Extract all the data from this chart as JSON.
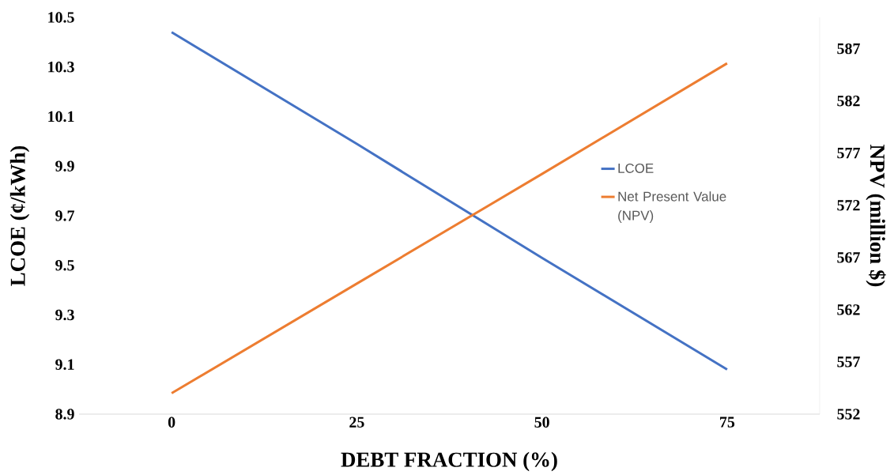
{
  "chart_data": {
    "type": "line",
    "xlabel": "DEBT FRACTION (%)",
    "ylabel": "LCOE (¢/kWh)",
    "y2label": "NPV (million $)",
    "categories": [
      "0",
      "25",
      "50",
      "75"
    ],
    "series": [
      {
        "name": "LCOE",
        "color": "#4472c4",
        "values": [
          10.44,
          9.99,
          9.53,
          9.08
        ]
      },
      {
        "name": "Net Present Value (NPV)",
        "color": "#ed7d31",
        "axis": "y2",
        "values": [
          554.0,
          564.5,
          575.0,
          585.6
        ]
      }
    ],
    "ylim": [
      8.9,
      10.5
    ],
    "yticks": [
      8.9,
      9.1,
      9.3,
      9.5,
      9.7,
      9.9,
      10.1,
      10.3,
      10.5
    ],
    "y2lim": [
      552,
      590
    ],
    "y2ticks": [
      552,
      557,
      562,
      567,
      572,
      577,
      582,
      587
    ],
    "legend": "right"
  }
}
